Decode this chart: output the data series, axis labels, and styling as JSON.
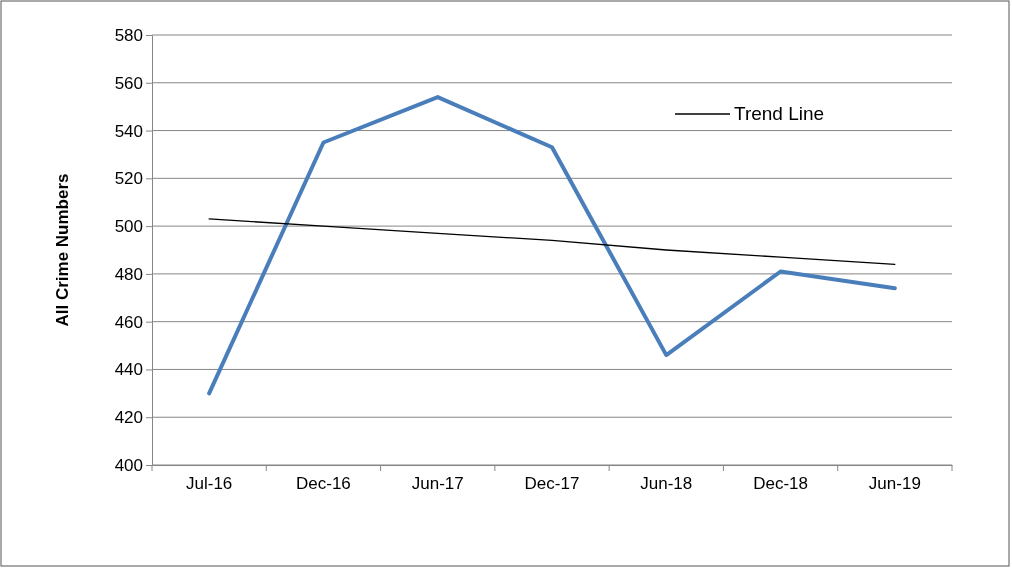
{
  "chart_data": {
    "type": "line",
    "ylabel": "All Crime Numbers",
    "categories": [
      "Jul-16",
      "Dec-16",
      "Jun-17",
      "Dec-17",
      "Jun-18",
      "Dec-18",
      "Jun-19"
    ],
    "series": [
      {
        "color": "#4a7ebb",
        "values": [
          430,
          535,
          554,
          533,
          446,
          481,
          474
        ]
      },
      {
        "name": "Trend Line",
        "type": "line",
        "color": "#000000",
        "values": [
          503,
          500,
          497,
          494,
          490,
          487,
          484
        ]
      }
    ],
    "ylim": [
      400,
      580
    ],
    "yticks": [
      400,
      420,
      440,
      460,
      480,
      500,
      520,
      540,
      560,
      580
    ],
    "grid": "y",
    "legend": "top right",
    "marker": "none"
  }
}
